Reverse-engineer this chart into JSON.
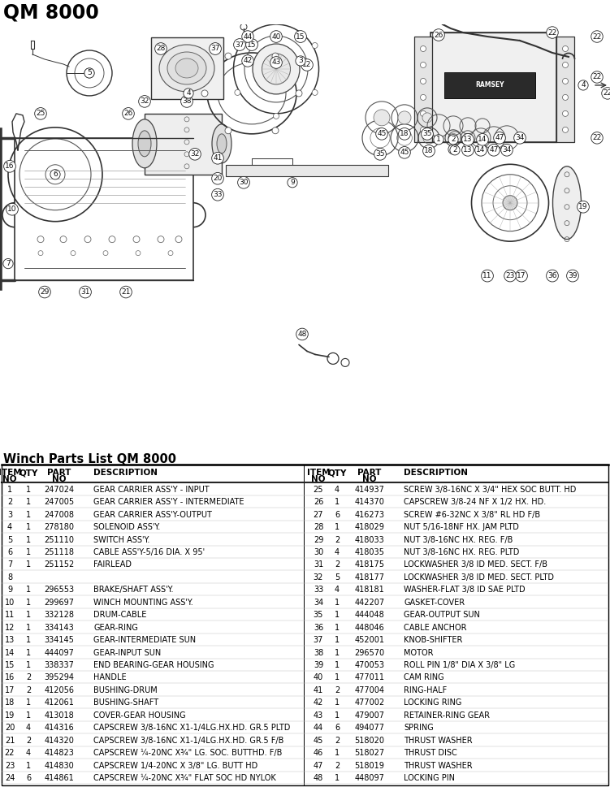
{
  "title": "QM 8000",
  "parts_title": "Winch Parts List QM 8000",
  "bg_color": "#ffffff",
  "text_color": "#000000",
  "parts_left": [
    [
      "1",
      "1",
      "247024",
      "GEAR CARRIER ASS'Y - INPUT"
    ],
    [
      "2",
      "1",
      "247005",
      "GEAR CARRIER ASS'Y - INTERMEDIATE"
    ],
    [
      "3",
      "1",
      "247008",
      "GEAR CARRIER ASS'Y-OUTPUT"
    ],
    [
      "4",
      "1",
      "278180",
      "SOLENOID ASS'Y."
    ],
    [
      "5",
      "1",
      "251110",
      "SWITCH ASS'Y."
    ],
    [
      "6",
      "1",
      "251118",
      "CABLE ASS'Y-5/16 DIA. X 95'"
    ],
    [
      "7",
      "1",
      "251152",
      "FAIRLEAD"
    ],
    [
      "8",
      "",
      "",
      ""
    ],
    [
      "9",
      "1",
      "296553",
      "BRAKE/SHAFT ASS'Y."
    ],
    [
      "10",
      "1",
      "299697",
      "WINCH MOUNTING ASS'Y."
    ],
    [
      "11",
      "1",
      "332128",
      "DRUM-CABLE"
    ],
    [
      "12",
      "1",
      "334143",
      "GEAR-RING"
    ],
    [
      "13",
      "1",
      "334145",
      "GEAR-INTERMEDIATE SUN"
    ],
    [
      "14",
      "1",
      "444097",
      "GEAR-INPUT SUN"
    ],
    [
      "15",
      "1",
      "338337",
      "END BEARING-GEAR HOUSING"
    ],
    [
      "16",
      "2",
      "395294",
      "HANDLE"
    ],
    [
      "17",
      "2",
      "412056",
      "BUSHING-DRUM"
    ],
    [
      "18",
      "1",
      "412061",
      "BUSHING-SHAFT"
    ],
    [
      "19",
      "1",
      "413018",
      "COVER-GEAR HOUSING"
    ],
    [
      "20",
      "4",
      "414316",
      "CAPSCREW 3/8-16NC X1-1/4LG.HX.HD. GR.5 PLTD"
    ],
    [
      "21",
      "2",
      "414320",
      "CAPSCREW 3/8-16NC X1-1/4LG.HX.HD. GR.5 F/B"
    ],
    [
      "22",
      "4",
      "414823",
      "CAPSCREW ¼-20NC X¾\" LG. SOC. BUTTHD. F/B"
    ],
    [
      "23",
      "1",
      "414830",
      "CAPSCREW 1/4-20NC X 3/8\" LG. BUTT HD"
    ],
    [
      "24",
      "6",
      "414861",
      "CAPSCREW ¼-20NC X¾\" FLAT SOC HD NYLOK"
    ]
  ],
  "parts_right": [
    [
      "25",
      "4",
      "414937",
      "SCREW 3/8-16NC X 3/4\" HEX SOC BUTT. HD"
    ],
    [
      "26",
      "1",
      "414370",
      "CAPSCREW 3/8-24 NF X 1/2 HX. HD."
    ],
    [
      "27",
      "6",
      "416273",
      "SCREW #6-32NC X 3/8\" RL HD F/B"
    ],
    [
      "28",
      "1",
      "418029",
      "NUT 5/16-18NF HX. JAM PLTD"
    ],
    [
      "29",
      "2",
      "418033",
      "NUT 3/8-16NC HX. REG. F/B"
    ],
    [
      "30",
      "4",
      "418035",
      "NUT 3/8-16NC HX. REG. PLTD"
    ],
    [
      "31",
      "2",
      "418175",
      "LOCKWASHER 3/8 ID MED. SECT. F/B"
    ],
    [
      "32",
      "5",
      "418177",
      "LOCKWASHER 3/8 ID MED. SECT. PLTD"
    ],
    [
      "33",
      "4",
      "418181",
      "WASHER-FLAT 3/8 ID SAE PLTD"
    ],
    [
      "34",
      "1",
      "442207",
      "GASKET-COVER"
    ],
    [
      "35",
      "1",
      "444048",
      "GEAR-OUTPUT SUN"
    ],
    [
      "36",
      "1",
      "448046",
      "CABLE ANCHOR"
    ],
    [
      "37",
      "1",
      "452001",
      "KNOB-SHIFTER"
    ],
    [
      "38",
      "1",
      "296570",
      "MOTOR"
    ],
    [
      "39",
      "1",
      "470053",
      "ROLL PIN 1/8\" DIA X 3/8\" LG"
    ],
    [
      "40",
      "1",
      "477011",
      "CAM RING"
    ],
    [
      "41",
      "2",
      "477004",
      "RING-HALF"
    ],
    [
      "42",
      "1",
      "477002",
      "LOCKING RING"
    ],
    [
      "43",
      "1",
      "479007",
      "RETAINER-RING GEAR"
    ],
    [
      "44",
      "6",
      "494077",
      "SPRING"
    ],
    [
      "45",
      "2",
      "518020",
      "THRUST WASHER"
    ],
    [
      "46",
      "1",
      "518027",
      "THRUST DISC"
    ],
    [
      "47",
      "2",
      "518019",
      "THRUST WASHER"
    ],
    [
      "48",
      "1",
      "448097",
      "LOCKING PIN"
    ]
  ]
}
